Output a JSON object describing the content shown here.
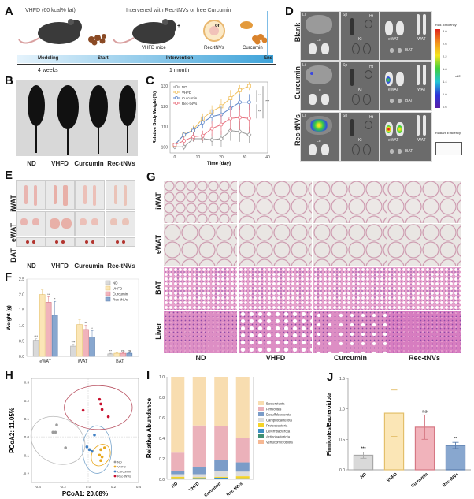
{
  "panels": {
    "A": {
      "letter": "A",
      "diet_label": "VHFD (60 kcal% fat)",
      "intervention_label": "Intervened with Rec-tNVs or free Curcumin",
      "mice_label": "VHFD mice",
      "plus": "+",
      "or": "or",
      "rec_label": "Rec-tNVs",
      "curcumin_label": "Curcumin",
      "phase_modeling": "Modeling",
      "start": "Start",
      "phase_intervention": "Intervention",
      "end": "End",
      "duration_1": "4 weeks",
      "duration_2": "1 month",
      "colors": {
        "timeline_start": "#dff0fb",
        "timeline_end": "#3ea3d9",
        "mouse": "#3a3a3a"
      }
    },
    "B": {
      "letter": "B",
      "groups": [
        "ND",
        "VHFD",
        "Curcumin",
        "Rec-tNVs"
      ]
    },
    "D": {
      "letter": "D",
      "rows": [
        "Blank",
        "Curcumin",
        "Rec-tNVs"
      ],
      "organ_labels": {
        "li": "Li",
        "lu": "Lu",
        "sp": "Sp",
        "ht": "Ht",
        "ki": "Ki",
        "ewat": "eWAT",
        "iwat": "iWAT",
        "bat": "BAT"
      },
      "colorbar_title": "Rad. Efficiency",
      "colorbar_ticks": [
        "0.6",
        "1.0",
        "1.4",
        "1.8",
        "2.2",
        "2.6",
        "3.0"
      ],
      "colorbar_unit": "x10⁸",
      "colorbar_note": "Radiant Efficiency"
    },
    "E": {
      "letter": "E",
      "rows": [
        "iWAT",
        "eWAT",
        "BAT"
      ],
      "groups": [
        "ND",
        "VHFD",
        "Curcumin",
        "Rec-tNVs"
      ]
    },
    "G": {
      "letter": "G",
      "rows": [
        "iWAT",
        "eWAT",
        "BAT",
        "Liver"
      ],
      "groups": [
        "ND",
        "VHFD",
        "Curcumin",
        "Rec-tNVs"
      ]
    }
  },
  "chart_data": [
    {
      "panel": "C",
      "type": "line",
      "title": "",
      "xlabel": "Time (day)",
      "ylabel": "Relative Body Weight (%)",
      "xlim": [
        -2,
        40
      ],
      "ylim": [
        97,
        132
      ],
      "xticks": [
        0,
        10,
        20,
        30,
        40
      ],
      "yticks": [
        100,
        110,
        120,
        130
      ],
      "x": [
        0,
        4,
        8,
        12,
        16,
        20,
        24,
        28,
        32
      ],
      "series": [
        {
          "name": "ND",
          "color": "#9a9a9a",
          "marker": "diamond",
          "values": [
            100,
            100,
            104,
            104,
            103.5,
            104,
            108,
            107.5,
            106
          ],
          "err": [
            1,
            1.5,
            1.5,
            2,
            3,
            4,
            5,
            5,
            4
          ]
        },
        {
          "name": "VHFD",
          "color": "#f0c060",
          "marker": "square",
          "values": [
            101,
            106,
            108.5,
            114,
            117.5,
            120,
            124,
            128,
            130
          ],
          "err": [
            1,
            1.5,
            2,
            2.5,
            3,
            3.5,
            4,
            2.5,
            2
          ]
        },
        {
          "name": "Curcumin",
          "color": "#5c85c9",
          "marker": "circle",
          "values": [
            101,
            106,
            108,
            112,
            115,
            116,
            119,
            122,
            122
          ],
          "err": [
            1,
            1.5,
            2,
            3,
            3.5,
            4,
            4,
            4,
            4
          ]
        },
        {
          "name": "Rec-tNVs",
          "color": "#e8707e",
          "marker": "circle",
          "values": [
            101,
            103,
            105,
            105.5,
            109,
            111,
            114,
            114.5,
            114
          ],
          "err": [
            1,
            2,
            2,
            2.5,
            4,
            5,
            6,
            6,
            7
          ]
        }
      ],
      "significance": [
        "**",
        "**",
        "****"
      ]
    },
    {
      "panel": "F",
      "type": "bar",
      "xlabel": "",
      "ylabel": "Weight (g)",
      "ylim": [
        0,
        2.5
      ],
      "yticks": [
        "0.0",
        "0.5",
        "1.0",
        "1.5",
        "2.0",
        "2.5"
      ],
      "categories": [
        "eWAT",
        "iWAT",
        "BAT"
      ],
      "legend_position": "top-right",
      "series": [
        {
          "name": "ND",
          "color": "#d9d9d9",
          "edge": "#a8a8a8",
          "values": [
            0.52,
            0.33,
            0.08
          ],
          "err": [
            0.05,
            0.05,
            0.02
          ],
          "sig": [
            "***",
            "***",
            "**"
          ]
        },
        {
          "name": "VHFD",
          "color": "#fbe6b6",
          "edge": "#e3bf6a",
          "values": [
            2.0,
            1.03,
            0.1
          ],
          "err": [
            0.15,
            0.15,
            0.02
          ],
          "sig": [
            "",
            "",
            ""
          ]
        },
        {
          "name": "Curcumin",
          "color": "#f1b3bb",
          "edge": "#d67884",
          "values": [
            1.75,
            0.87,
            0.1
          ],
          "err": [
            0.18,
            0.14,
            0.02
          ],
          "sig": [
            "**",
            "**",
            "ns"
          ]
        },
        {
          "name": "Rec-tNVs",
          "color": "#88a7cf",
          "edge": "#5c7fae",
          "values": [
            1.33,
            0.63,
            0.1
          ],
          "err": [
            0.45,
            0.2,
            0.02
          ],
          "sig": [
            "*",
            "*",
            "ns"
          ]
        }
      ]
    },
    {
      "panel": "H",
      "type": "scatter",
      "xlabel": "PCoA1: 20.08%",
      "ylabel": "PCoA2: 11.05%",
      "xlim": [
        -0.45,
        0.4
      ],
      "ylim": [
        -0.25,
        0.32
      ],
      "xticks": [
        "-0.4",
        "-0.2",
        "0.0",
        "0.2",
        "0.4"
      ],
      "yticks": [
        "-0.2",
        "-0.1",
        "0.0",
        "0.1",
        "0.2",
        "0.3"
      ],
      "legend_position": "bottom-right",
      "series": [
        {
          "name": "ND",
          "color": "#9c9c9c",
          "points": [
            [
              -0.25,
              0.065
            ],
            [
              -0.28,
              0.025
            ],
            [
              -0.26,
              0.025
            ],
            [
              -0.18,
              -0.06
            ]
          ]
        },
        {
          "name": "VHFD",
          "color": "#e8a820",
          "points": [
            [
              0.1,
              -0.07
            ],
            [
              0.13,
              -0.06
            ],
            [
              0.09,
              -0.1
            ],
            [
              0.1,
              -0.13
            ],
            [
              0.11,
              -0.11
            ]
          ]
        },
        {
          "name": "Curcumin",
          "color": "#3f7fc4",
          "points": [
            [
              0.05,
              0.01
            ],
            [
              -0.01,
              -0.055
            ],
            [
              0.01,
              -0.07
            ],
            [
              0.03,
              -0.08
            ]
          ]
        },
        {
          "name": "Rec-tNVs",
          "color": "#c8102e",
          "points": [
            [
              -0.04,
              0.145
            ],
            [
              0.09,
              0.205
            ],
            [
              0.1,
              0.18
            ],
            [
              0.11,
              0.15
            ],
            [
              0.16,
              0.11
            ]
          ]
        }
      ]
    },
    {
      "panel": "I",
      "type": "bar",
      "stacked": true,
      "ylabel": "Relative Abundance",
      "ylim": [
        0,
        1.0
      ],
      "yticks": [
        "0.0",
        "0.2",
        "0.4",
        "0.6",
        "0.8",
        "1.0"
      ],
      "categories": [
        "ND",
        "VHFD",
        "Curcumin",
        "Rec-tNVs"
      ],
      "legend_position": "right",
      "series": [
        {
          "name": "Verrucomicrobiota",
          "color": "#f6b893",
          "values": [
            0.003,
            0.003,
            0.003,
            0.003
          ]
        },
        {
          "name": "Actinobacteriota",
          "color": "#3f8f73",
          "values": [
            0.003,
            0.003,
            0.003,
            0.003
          ]
        },
        {
          "name": "Deferribacterota",
          "color": "#3d8fc4",
          "values": [
            0.004,
            0.006,
            0.01,
            0.004
          ]
        },
        {
          "name": "Proteobacteria",
          "color": "#f5d328",
          "values": [
            0.015,
            0.008,
            0.009,
            0.02
          ]
        },
        {
          "name": "Campilobacterota",
          "color": "#dcdcdc",
          "values": [
            0.025,
            0.03,
            0.055,
            0.045
          ]
        },
        {
          "name": "Desulfobacterota",
          "color": "#7b9cc8",
          "values": [
            0.03,
            0.07,
            0.11,
            0.09
          ]
        },
        {
          "name": "Firmicutes",
          "color": "#ebb1ba",
          "values": [
            0.18,
            0.405,
            0.33,
            0.24
          ]
        },
        {
          "name": "Bacteroidota",
          "color": "#f8ddb0",
          "values": [
            0.74,
            0.475,
            0.48,
            0.595
          ]
        }
      ]
    },
    {
      "panel": "J",
      "type": "bar",
      "ylabel": "Firmicutes/Bacteroidota",
      "ylim": [
        0,
        1.5
      ],
      "yticks": [
        "0.0",
        "0.5",
        "1.0",
        "1.5"
      ],
      "categories": [
        "ND",
        "VHFD",
        "Curcumin",
        "Rec-tNVs"
      ],
      "values": [
        0.24,
        0.93,
        0.7,
        0.4
      ],
      "err": [
        0.05,
        0.38,
        0.2,
        0.05
      ],
      "sig": [
        "***",
        "",
        "ns",
        "**"
      ],
      "colors": [
        "#d9d9d9",
        "#fbe6b6",
        "#f1b3bb",
        "#88a7cf"
      ],
      "edges": [
        "#a8a8a8",
        "#e3bf6a",
        "#d67884",
        "#5c7fae"
      ]
    }
  ]
}
